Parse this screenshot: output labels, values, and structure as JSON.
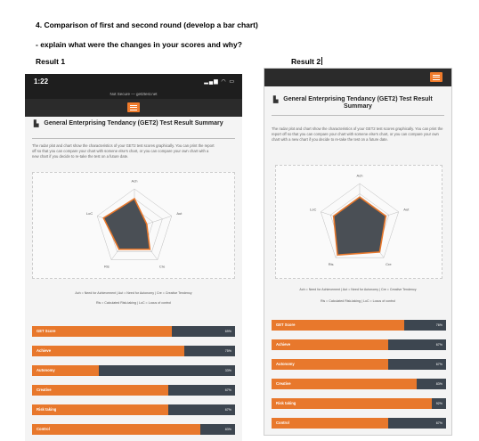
{
  "document": {
    "question": "4. Comparison of first and second round (develop a bar chart)",
    "instruction": "- explain what were the changes in your scores and why?",
    "result1_label": "Result 1",
    "result2_label": "Result 2"
  },
  "colors": {
    "orange": "#e8782c",
    "bar_track": "#3d4650",
    "header_dark": "#2b2b2b"
  },
  "result1": {
    "status_time": "1:22",
    "url_text": "Not Secure — get2test.net",
    "title": "General Enterprising Tendancy (GET2) Test Result Summary",
    "intro": "The radar plot and chart show the characteristics of your GET2 test scores graphically. You can print the report off so that you can compare your chart with somene else's chart, or you can compare your own chart with a new chart if you decide to re-take the test on a future date.",
    "legend_line1": "Ach = Need for Achievement | Aut = Need for Autonomy | Cre = Creative Tendency",
    "legend_line2": "Ris = Calculated Risk-taking | LoC = Locus of control",
    "radar_labels": {
      "ach": "Ach",
      "aut": "Aut",
      "cre": "Cre",
      "ris": "Ris",
      "loc": "LoC"
    },
    "scores": [
      {
        "label": "GET Score",
        "pct": "69%",
        "value": 69
      },
      {
        "label": "Achieve",
        "pct": "75%",
        "value": 75
      },
      {
        "label": "Autonomy",
        "pct": "33%",
        "value": 33
      },
      {
        "label": "Creative",
        "pct": "67%",
        "value": 67
      },
      {
        "label": "Risk taking",
        "pct": "67%",
        "value": 67
      },
      {
        "label": "Control",
        "pct": "83%",
        "value": 83
      }
    ]
  },
  "result2": {
    "title": "General Enterprising Tendancy (GET2) Test Result Summary",
    "intro": "The radar plot and chart show the characteristics of your GET2 test scores graphically. You can print the report off so that you can compare your chart with somene else's chart, or you can compare your own chart with a new chart if you decide to re-take the test on a future date.",
    "legend_line1": "Ach = Need for Achievement | Aut = Need for Autonomy | Cre = Creative Tendency",
    "legend_line2": "Ris = Calculated Risk-taking | LoC = Locus of control",
    "radar_labels": {
      "ach": "Ach",
      "aut": "Aut",
      "cre": "Cre",
      "ris": "Ris",
      "loc": "LoC"
    },
    "scores": [
      {
        "label": "GET Score",
        "pct": "76%",
        "value": 76
      },
      {
        "label": "Achieve",
        "pct": "67%",
        "value": 67
      },
      {
        "label": "Autonomy",
        "pct": "67%",
        "value": 67
      },
      {
        "label": "Creative",
        "pct": "83%",
        "value": 83
      },
      {
        "label": "Risk taking",
        "pct": "92%",
        "value": 92
      },
      {
        "label": "Control",
        "pct": "67%",
        "value": 67
      }
    ]
  }
}
